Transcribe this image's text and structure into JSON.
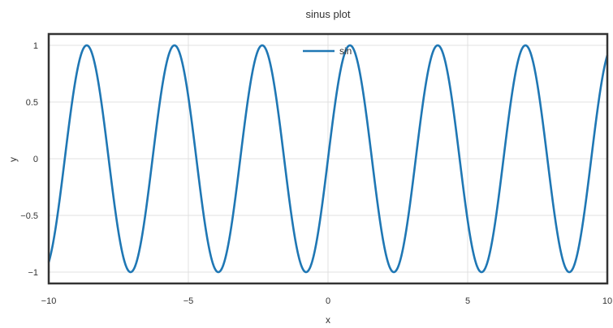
{
  "chart_data": {
    "type": "line",
    "title": "sinus plot",
    "xlabel": "x",
    "ylabel": "y",
    "xlim": [
      -10,
      10
    ],
    "ylim": [
      -1.1,
      1.1
    ],
    "x_ticks": [
      -10,
      -5,
      0,
      5,
      10
    ],
    "x_tick_labels": [
      "−10",
      "−5",
      "0",
      "5",
      "10"
    ],
    "y_ticks": [
      -1,
      -0.5,
      0,
      0.5,
      1
    ],
    "y_tick_labels": [
      "−1",
      "−0.5",
      "0",
      "0.5",
      "1"
    ],
    "grid": true,
    "legend_position": "top-center",
    "series": [
      {
        "name": "sin",
        "function": "sin(2x)",
        "x_start": -10,
        "x_end": 10,
        "color": "#1f77b4"
      }
    ]
  },
  "colors": {
    "frame": "#333333",
    "grid": "#e0e0e0",
    "line": "#1f77b4"
  }
}
